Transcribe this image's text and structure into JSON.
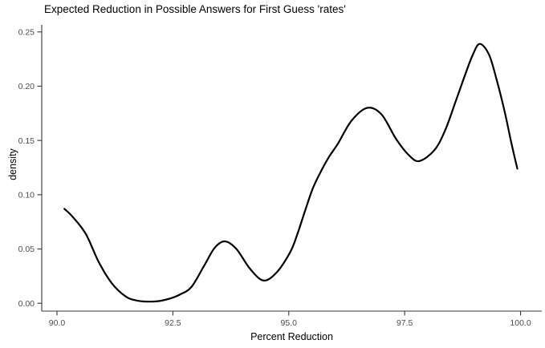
{
  "chart_data": {
    "type": "line",
    "subtype": "density-curve",
    "title": "Expected Reduction in Possible Answers for First Guess 'rates'",
    "xlabel": "Percent Reduction",
    "ylabel": "density",
    "xlim": [
      89.671,
      100.458
    ],
    "ylim": [
      -0.00725,
      0.2565
    ],
    "x_ticks": [
      90.0,
      92.5,
      95.0,
      97.5,
      100.0
    ],
    "x_tick_labels": [
      "90.0",
      "92.5",
      "95.0",
      "97.5",
      "100.0"
    ],
    "y_ticks": [
      0.0,
      0.05,
      0.1,
      0.15,
      0.2,
      0.25
    ],
    "y_tick_labels": [
      "0.00",
      "0.05",
      "0.10",
      "0.15",
      "0.20",
      "0.25"
    ],
    "grid": false,
    "legend": "none",
    "line_color": "#000000",
    "line_width": 2.2,
    "axis_line_color": "#383838",
    "tick_label_color": "#4d4d4d",
    "background_color": "#ffffff",
    "points": [
      [
        90.16,
        0.087
      ],
      [
        90.33,
        0.08
      ],
      [
        90.62,
        0.064
      ],
      [
        90.9,
        0.038
      ],
      [
        91.19,
        0.018
      ],
      [
        91.49,
        0.006
      ],
      [
        91.72,
        0.0025
      ],
      [
        91.95,
        0.0015
      ],
      [
        92.2,
        0.002
      ],
      [
        92.45,
        0.0045
      ],
      [
        92.65,
        0.008
      ],
      [
        92.9,
        0.015
      ],
      [
        93.18,
        0.035
      ],
      [
        93.4,
        0.051
      ],
      [
        93.62,
        0.057
      ],
      [
        93.87,
        0.05
      ],
      [
        94.16,
        0.032
      ],
      [
        94.45,
        0.021
      ],
      [
        94.73,
        0.028
      ],
      [
        95.03,
        0.047
      ],
      [
        95.18,
        0.063
      ],
      [
        95.35,
        0.085
      ],
      [
        95.52,
        0.106
      ],
      [
        95.7,
        0.122
      ],
      [
        95.87,
        0.135
      ],
      [
        96.06,
        0.147
      ],
      [
        96.35,
        0.168
      ],
      [
        96.69,
        0.18
      ],
      [
        97.0,
        0.174
      ],
      [
        97.32,
        0.151
      ],
      [
        97.6,
        0.136
      ],
      [
        97.82,
        0.131
      ],
      [
        98.14,
        0.141
      ],
      [
        98.37,
        0.159
      ],
      [
        98.6,
        0.186
      ],
      [
        98.8,
        0.21
      ],
      [
        98.97,
        0.229
      ],
      [
        99.12,
        0.239
      ],
      [
        99.32,
        0.229
      ],
      [
        99.49,
        0.205
      ],
      [
        99.66,
        0.176
      ],
      [
        99.8,
        0.148
      ],
      [
        99.93,
        0.124
      ]
    ],
    "annotations": {
      "start_point": [
        90.16,
        0.087
      ],
      "local_max_1": [
        93.62,
        0.057
      ],
      "local_min_1": [
        94.45,
        0.021
      ],
      "local_max_2": [
        96.69,
        0.18
      ],
      "local_min_2": [
        97.82,
        0.131
      ],
      "global_max": [
        99.12,
        0.239
      ],
      "end_point": [
        99.93,
        0.124
      ]
    }
  }
}
